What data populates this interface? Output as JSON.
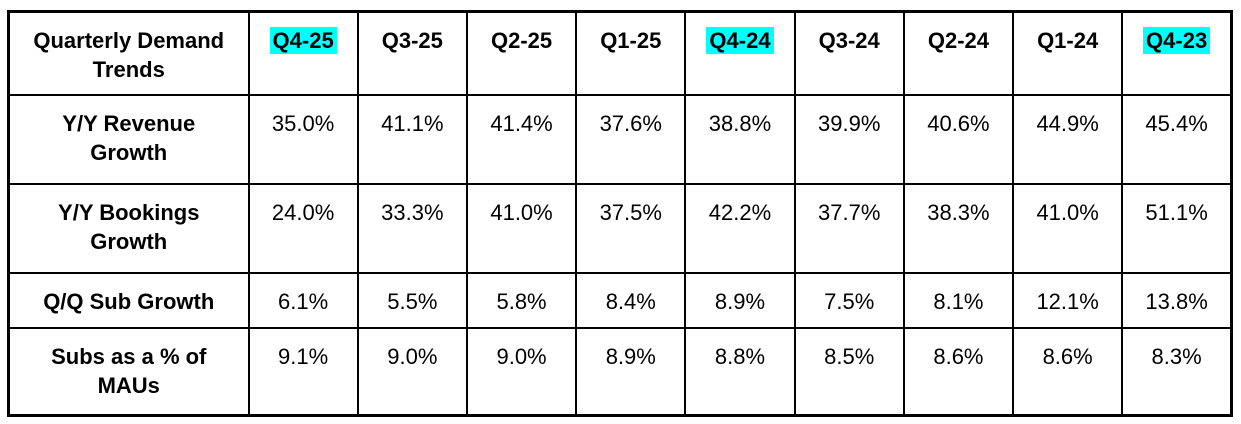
{
  "table": {
    "title": "Quarterly Demand Trends",
    "highlight_color": "#00FFFF",
    "columns": [
      {
        "label": "Q4-25",
        "highlighted": true
      },
      {
        "label": "Q3-25",
        "highlighted": false
      },
      {
        "label": "Q2-25",
        "highlighted": false
      },
      {
        "label": "Q1-25",
        "highlighted": false
      },
      {
        "label": "Q4-24",
        "highlighted": true
      },
      {
        "label": "Q3-24",
        "highlighted": false
      },
      {
        "label": "Q2-24",
        "highlighted": false
      },
      {
        "label": "Q1-24",
        "highlighted": false
      },
      {
        "label": "Q4-23",
        "highlighted": true
      }
    ],
    "rows": [
      {
        "label": "Y/Y Revenue Growth",
        "values": [
          "35.0%",
          "41.1%",
          "41.4%",
          "37.6%",
          "38.8%",
          "39.9%",
          "40.6%",
          "44.9%",
          "45.4%"
        ]
      },
      {
        "label": "Y/Y Bookings Growth",
        "values": [
          "24.0%",
          "33.3%",
          "41.0%",
          "37.5%",
          "42.2%",
          "37.7%",
          "38.3%",
          "41.0%",
          "51.1%"
        ]
      },
      {
        "label": "Q/Q Sub Growth",
        "values": [
          "6.1%",
          "5.5%",
          "5.8%",
          "8.4%",
          "8.9%",
          "7.5%",
          "8.1%",
          "12.1%",
          "13.8%"
        ]
      },
      {
        "label": "Subs as a % of MAUs",
        "values": [
          "9.1%",
          "9.0%",
          "9.0%",
          "8.9%",
          "8.8%",
          "8.5%",
          "8.6%",
          "8.6%",
          "8.3%"
        ]
      }
    ]
  },
  "chart_data": {
    "type": "table",
    "title": "Quarterly Demand Trends",
    "categories": [
      "Q4-25",
      "Q3-25",
      "Q2-25",
      "Q1-25",
      "Q4-24",
      "Q3-24",
      "Q2-24",
      "Q1-24",
      "Q4-23"
    ],
    "highlighted_categories": [
      "Q4-25",
      "Q4-24",
      "Q4-23"
    ],
    "series": [
      {
        "name": "Y/Y Revenue Growth",
        "values": [
          35.0,
          41.1,
          41.4,
          37.6,
          38.8,
          39.9,
          40.6,
          44.9,
          45.4
        ],
        "unit": "%"
      },
      {
        "name": "Y/Y Bookings Growth",
        "values": [
          24.0,
          33.3,
          41.0,
          37.5,
          42.2,
          37.7,
          38.3,
          41.0,
          51.1
        ],
        "unit": "%"
      },
      {
        "name": "Q/Q Sub Growth",
        "values": [
          6.1,
          5.5,
          5.8,
          8.4,
          8.9,
          7.5,
          8.1,
          12.1,
          13.8
        ],
        "unit": "%"
      },
      {
        "name": "Subs as a % of MAUs",
        "values": [
          9.1,
          9.0,
          9.0,
          8.9,
          8.8,
          8.5,
          8.6,
          8.6,
          8.3
        ],
        "unit": "%"
      }
    ]
  }
}
